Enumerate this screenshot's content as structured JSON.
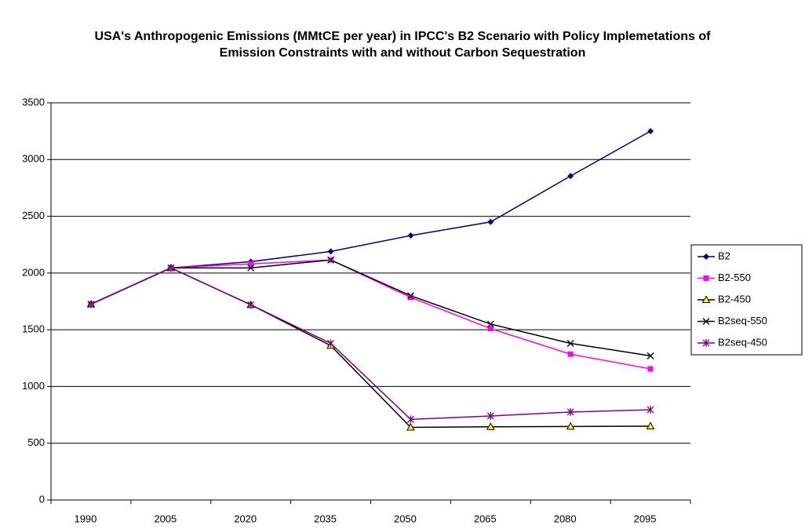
{
  "chart_data": {
    "type": "line",
    "title": "USA's Anthropogenic Emissions (MMtCE per year) in IPCC's B2 Scenario with Policy Implemetations of Emission Constraints with and without Carbon Sequestration",
    "categories": [
      "1990",
      "2005",
      "2020",
      "2035",
      "2050",
      "2065",
      "2080",
      "2095"
    ],
    "series": [
      {
        "name": "B2",
        "color": "#000080",
        "marker": "diamond",
        "values": [
          1725,
          2045,
          2100,
          2190,
          2330,
          2450,
          2855,
          3250
        ]
      },
      {
        "name": "B2-550",
        "color": "#ff00ff",
        "marker": "square",
        "values": [
          1725,
          2045,
          2080,
          2115,
          1785,
          1510,
          1285,
          1155
        ]
      },
      {
        "name": "B2-450",
        "color": "#000000",
        "marker": "triangle",
        "values": [
          1725,
          2045,
          1720,
          1360,
          640,
          645,
          648,
          650
        ]
      },
      {
        "name": "B2seq-550",
        "color": "#000000",
        "marker": "x",
        "values": [
          1725,
          2045,
          2045,
          2115,
          1800,
          1550,
          1380,
          1270
        ]
      },
      {
        "name": "B2seq-450",
        "color": "#800080",
        "marker": "star",
        "values": [
          1725,
          2045,
          1720,
          1380,
          710,
          740,
          775,
          795
        ]
      }
    ],
    "ylim": [
      0,
      3500
    ],
    "yticks": [
      0,
      500,
      1000,
      1500,
      2000,
      2500,
      3000,
      3500
    ],
    "grid": true,
    "legend": "right"
  }
}
